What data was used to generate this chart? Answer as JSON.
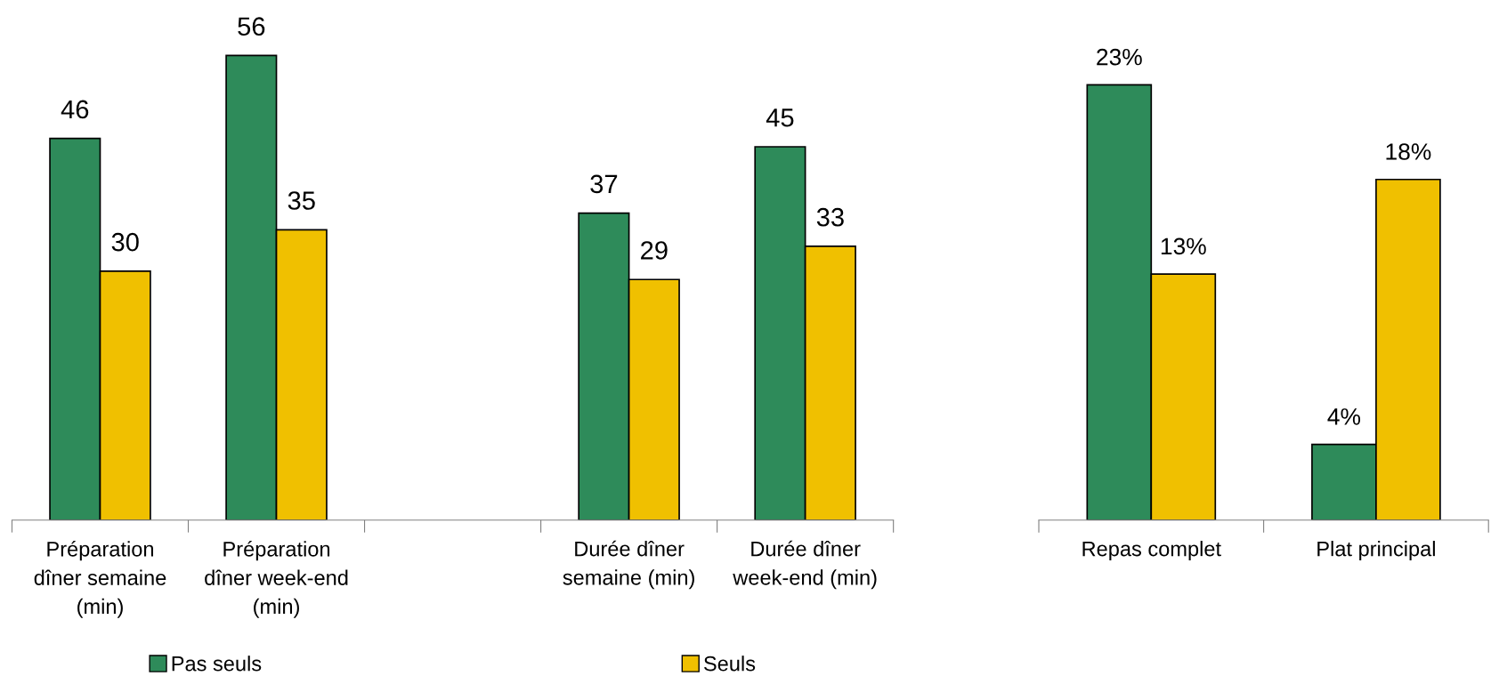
{
  "chart_data": [
    {
      "type": "bar",
      "categories": [
        "Préparation dîner semaine (min)",
        "Préparation dîner week-end (min)",
        null,
        "Durée dîner semaine (min)",
        "Durée dîner week-end (min)"
      ],
      "series": [
        {
          "name": "Pas seuls",
          "color": "#2e8b5a",
          "values": [
            46,
            56,
            null,
            37,
            45
          ]
        },
        {
          "name": "Seuls",
          "color": "#f0c000",
          "values": [
            30,
            35,
            null,
            29,
            33
          ]
        }
      ],
      "data_labels": true,
      "legend": "bottom"
    },
    {
      "type": "bar",
      "categories": [
        "Repas complet",
        "Plat principal"
      ],
      "series": [
        {
          "color": "#2e8b5a",
          "values": [
            23,
            4
          ],
          "value_labels": [
            "23%",
            "4%"
          ]
        },
        {
          "color": "#f0c000",
          "values": [
            13,
            18
          ],
          "value_labels": [
            "13%",
            "18%"
          ]
        }
      ]
    }
  ]
}
